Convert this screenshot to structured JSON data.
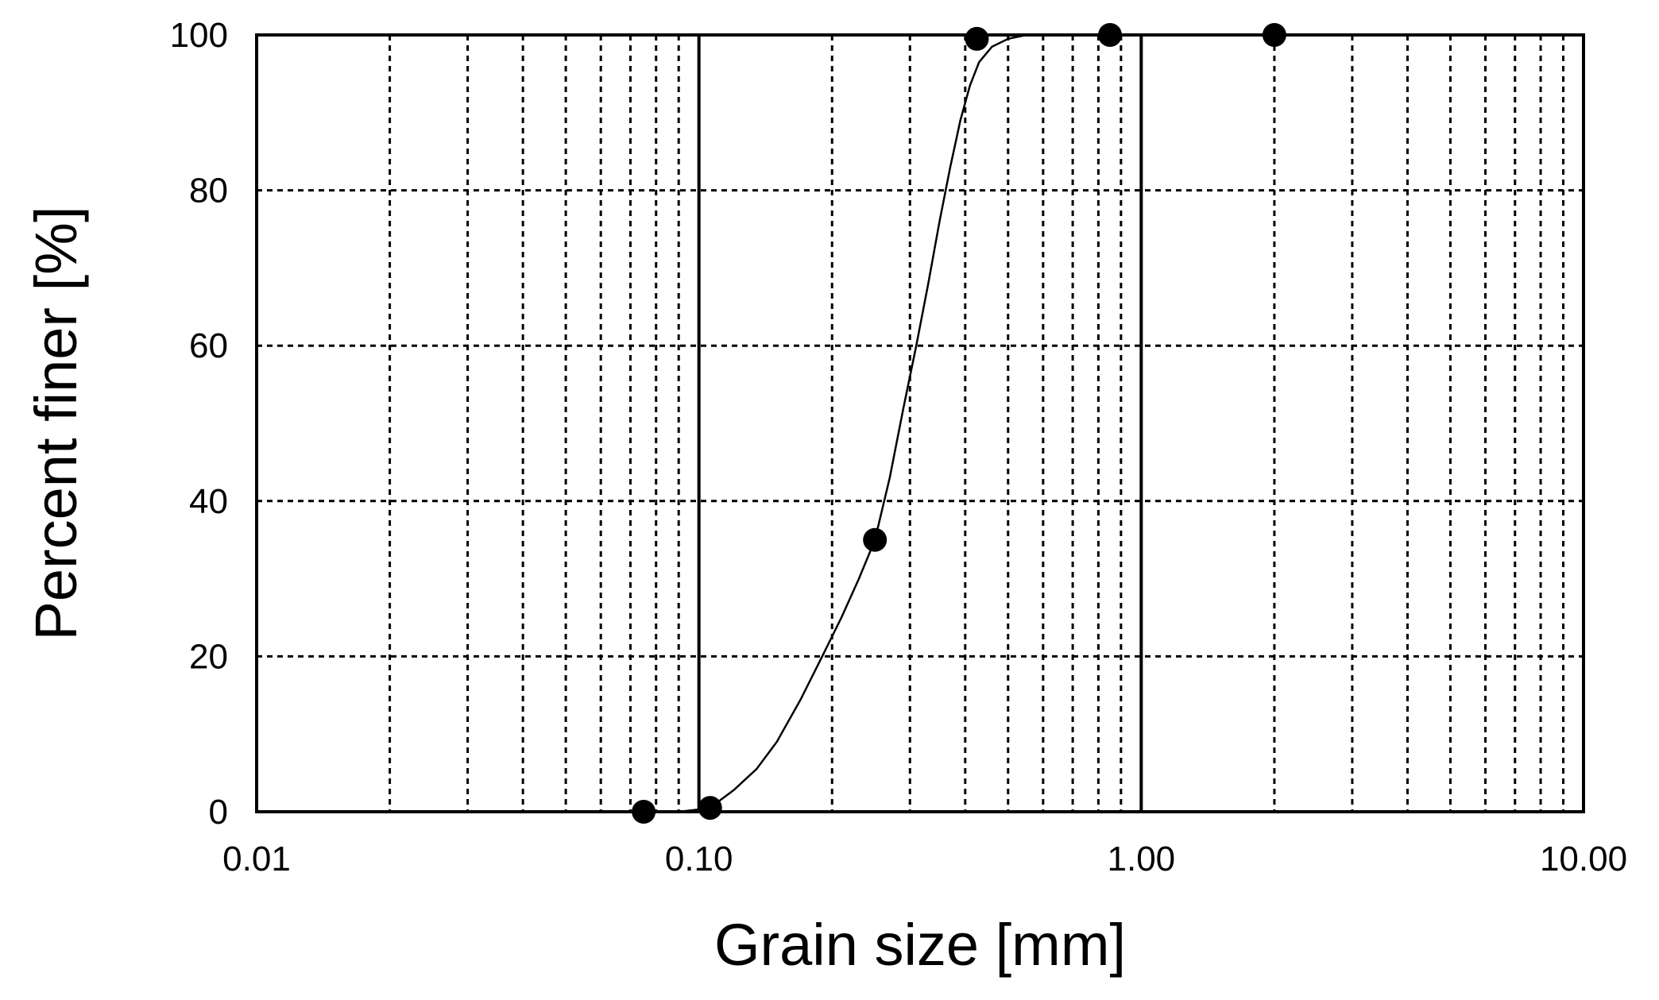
{
  "chart_data": {
    "type": "scatter",
    "xscale": "log",
    "xlim": [
      0.01,
      10
    ],
    "ylim": [
      0,
      100
    ],
    "xlabel": "Grain size [mm]",
    "ylabel": "Percent finer [%]",
    "x_tick_labels": [
      "0.01",
      "0.10",
      "1.00",
      "10.00"
    ],
    "x_tick_values": [
      0.01,
      0.1,
      1,
      10
    ],
    "y_ticks": [
      0,
      20,
      40,
      60,
      80,
      100
    ],
    "grid": true,
    "points": [
      {
        "x": 0.075,
        "y": 0
      },
      {
        "x": 0.106,
        "y": 0.5
      },
      {
        "x": 0.25,
        "y": 35
      },
      {
        "x": 0.425,
        "y": 99.5
      },
      {
        "x": 0.85,
        "y": 100
      },
      {
        "x": 2.0,
        "y": 100
      }
    ],
    "curve": [
      {
        "x": 0.075,
        "y": 0
      },
      {
        "x": 0.09,
        "y": 0
      },
      {
        "x": 0.1,
        "y": 0.3
      },
      {
        "x": 0.11,
        "y": 1.2
      },
      {
        "x": 0.12,
        "y": 2.8
      },
      {
        "x": 0.135,
        "y": 5.5
      },
      {
        "x": 0.15,
        "y": 9
      },
      {
        "x": 0.17,
        "y": 14.5
      },
      {
        "x": 0.19,
        "y": 20
      },
      {
        "x": 0.21,
        "y": 25
      },
      {
        "x": 0.23,
        "y": 30
      },
      {
        "x": 0.25,
        "y": 35
      },
      {
        "x": 0.27,
        "y": 43
      },
      {
        "x": 0.29,
        "y": 52
      },
      {
        "x": 0.31,
        "y": 60
      },
      {
        "x": 0.33,
        "y": 68
      },
      {
        "x": 0.35,
        "y": 76
      },
      {
        "x": 0.37,
        "y": 83
      },
      {
        "x": 0.39,
        "y": 89
      },
      {
        "x": 0.41,
        "y": 93.5
      },
      {
        "x": 0.43,
        "y": 96.5
      },
      {
        "x": 0.46,
        "y": 98.5
      },
      {
        "x": 0.5,
        "y": 99.5
      },
      {
        "x": 0.55,
        "y": 100
      },
      {
        "x": 0.85,
        "y": 100
      },
      {
        "x": 2.0,
        "y": 100
      }
    ],
    "colors": {
      "line": "#000000",
      "marker": "#000000",
      "grid": "#000000"
    }
  }
}
